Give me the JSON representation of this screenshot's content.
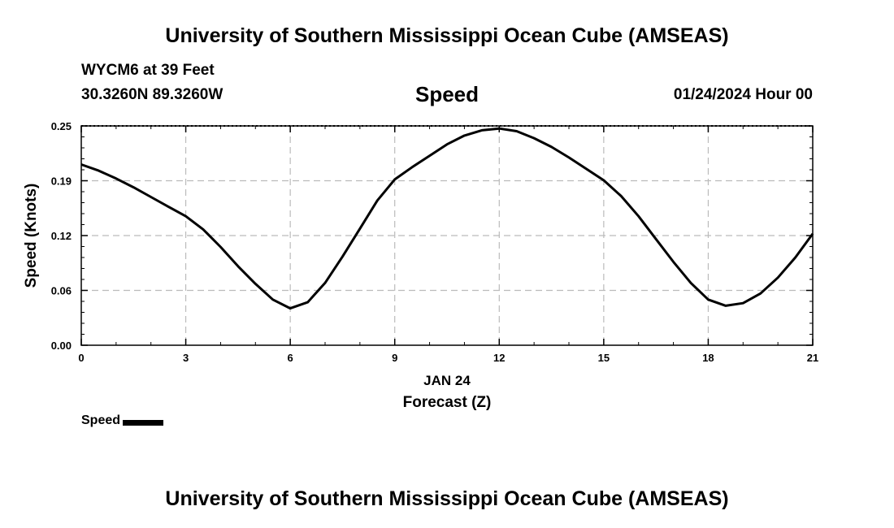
{
  "header": {
    "title": "University of Southern Mississippi Ocean Cube (AMSEAS)",
    "station": "WYCM6 at 39 Feet",
    "coords": "30.3260N  89.3260W",
    "datetime": "01/24/2024 Hour 00"
  },
  "footer": {
    "title": "University of Southern Mississippi Ocean Cube (AMSEAS)"
  },
  "legend": {
    "label": "Speed"
  },
  "chart_data": {
    "type": "line",
    "title": "Speed",
    "xlabel": "Forecast (Z)",
    "xlabel_date": "JAN 24",
    "ylabel": "Speed (Knots)",
    "xlim": [
      0,
      21
    ],
    "ylim": [
      0,
      0.25
    ],
    "xticks": [
      0,
      3,
      6,
      9,
      12,
      15,
      18,
      21
    ],
    "xtick_labels": [
      "0",
      "3",
      "6",
      "9",
      "12",
      "15",
      "18",
      "21"
    ],
    "yticks": [
      0.0,
      0.0625,
      0.125,
      0.1875,
      0.25
    ],
    "ytick_labels": [
      "0.00",
      "0.06",
      "0.12",
      "0.19",
      "0.25"
    ],
    "grid": true,
    "line_color": "#000000",
    "grid_color": "#bbbbbb",
    "series": [
      {
        "name": "Speed",
        "x": [
          0,
          0.5,
          1,
          1.5,
          2,
          2.5,
          3,
          3.5,
          4,
          4.5,
          5,
          5.5,
          6,
          6.5,
          7,
          7.5,
          8,
          8.5,
          9,
          9.5,
          10,
          10.5,
          11,
          11.5,
          12,
          12.5,
          13,
          13.5,
          14,
          14.5,
          15,
          15.5,
          16,
          16.5,
          17,
          17.5,
          18,
          18.5,
          19,
          19.5,
          20,
          20.5,
          21
        ],
        "values": [
          0.206,
          0.199,
          0.19,
          0.18,
          0.169,
          0.158,
          0.147,
          0.132,
          0.112,
          0.09,
          0.07,
          0.052,
          0.042,
          0.049,
          0.071,
          0.101,
          0.133,
          0.165,
          0.189,
          0.203,
          0.216,
          0.229,
          0.239,
          0.245,
          0.247,
          0.244,
          0.236,
          0.226,
          0.214,
          0.201,
          0.188,
          0.17,
          0.147,
          0.121,
          0.095,
          0.071,
          0.052,
          0.045,
          0.048,
          0.059,
          0.077,
          0.1,
          0.127
        ]
      }
    ]
  }
}
